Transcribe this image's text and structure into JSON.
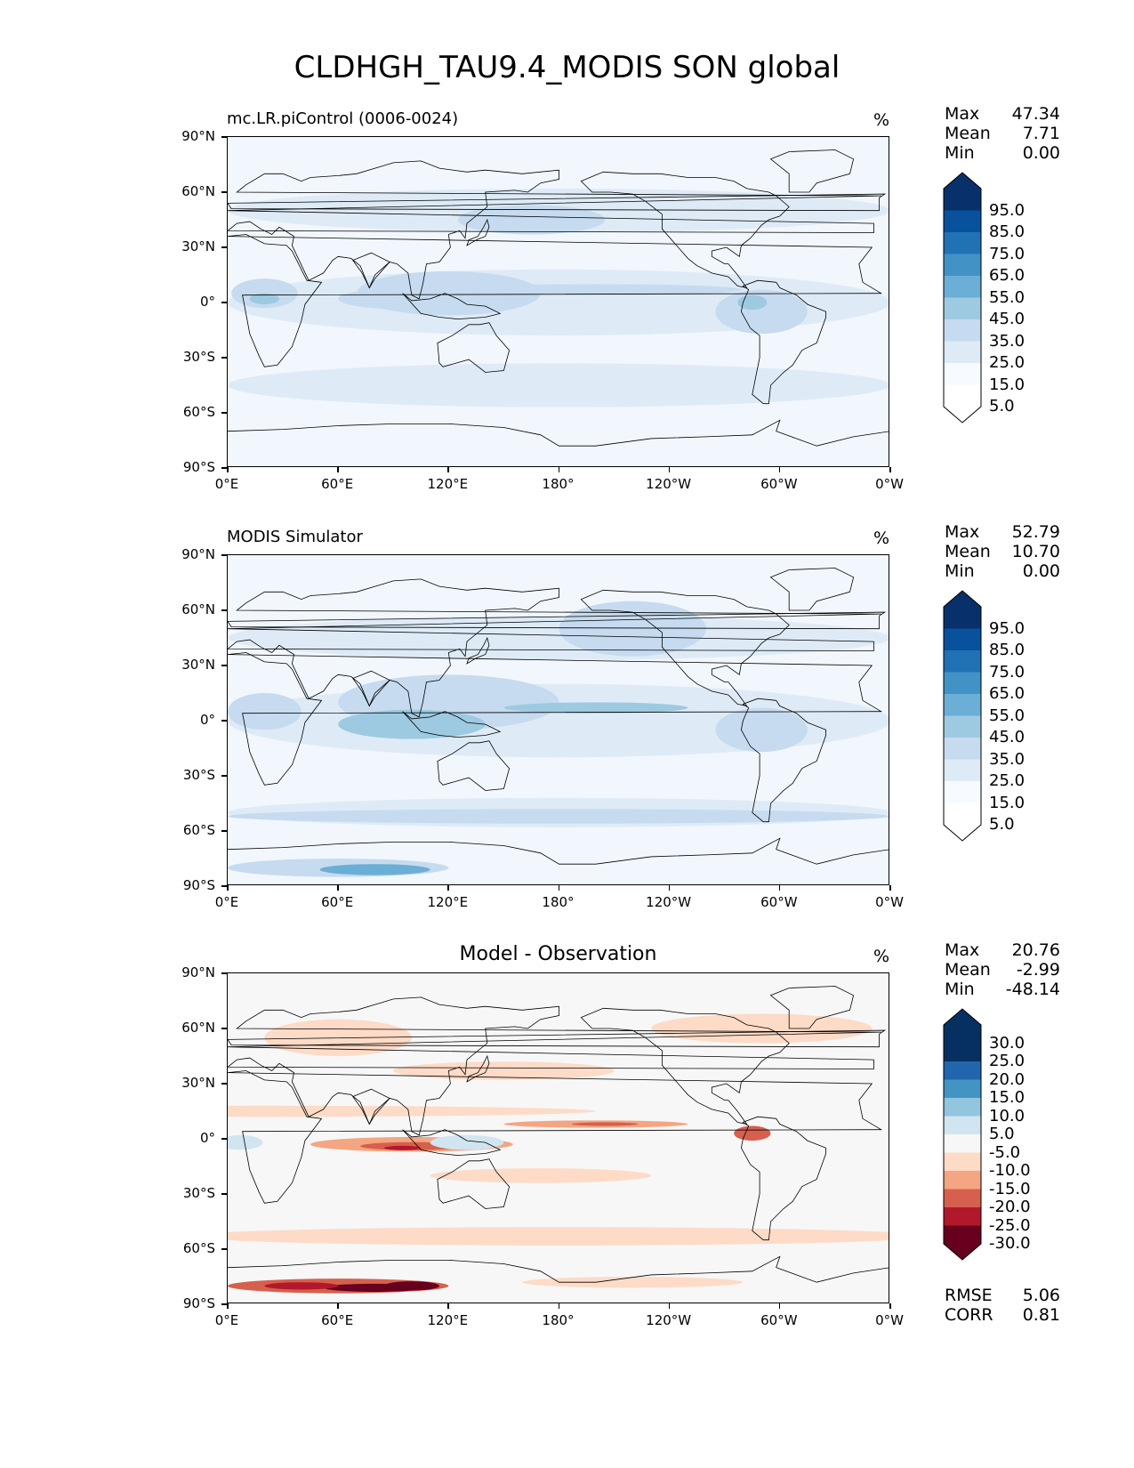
{
  "title": "CLDHGH_TAU9.4_MODIS SON global",
  "lat_ticks": [
    "90°N",
    "60°N",
    "30°N",
    "0°",
    "30°S",
    "60°S",
    "90°S"
  ],
  "lon_ticks": [
    "0°E",
    "60°E",
    "120°E",
    "180°",
    "120°W",
    "60°W",
    "0°W"
  ],
  "panels": [
    {
      "title": "mc.LR.piControl (0006-0024)",
      "units": "%",
      "stats": {
        "max_label": "Max",
        "max": "47.34",
        "mean_label": "Mean",
        "mean": "7.71",
        "min_label": "Min",
        "min": "0.00"
      },
      "colorbar_labels": [
        "95.0",
        "85.0",
        "75.0",
        "65.0",
        "55.0",
        "45.0",
        "35.0",
        "25.0",
        "15.0",
        "5.0"
      ]
    },
    {
      "title": "MODIS Simulator",
      "units": "%",
      "stats": {
        "max_label": "Max",
        "max": "52.79",
        "mean_label": "Mean",
        "mean": "10.70",
        "min_label": "Min",
        "min": "0.00"
      },
      "colorbar_labels": [
        "95.0",
        "85.0",
        "75.0",
        "65.0",
        "55.0",
        "45.0",
        "35.0",
        "25.0",
        "15.0",
        "5.0"
      ]
    },
    {
      "title": "Model - Observation",
      "units": "%",
      "stats": {
        "max_label": "Max",
        "max": "20.76",
        "mean_label": "Mean",
        "mean": "-2.99",
        "min_label": "Min",
        "min": "-48.14"
      },
      "colorbar_labels": [
        "30.0",
        "25.0",
        "20.0",
        "15.0",
        "10.0",
        "5.0",
        "-5.0",
        "-10.0",
        "-15.0",
        "-20.0",
        "-25.0",
        "-30.0"
      ],
      "rmse_label": "RMSE",
      "rmse": "5.06",
      "corr_label": "CORR",
      "corr": "0.81"
    }
  ],
  "colors": {
    "blues": [
      "#ffffff",
      "#f7fbff",
      "#deebf7",
      "#c6dbef",
      "#9ecae1",
      "#6baed6",
      "#4292c6",
      "#2171b5",
      "#08519c",
      "#08306b"
    ],
    "diff": [
      "#67001f",
      "#b2182b",
      "#d6604d",
      "#f4a582",
      "#fddbc7",
      "#f7f7f7",
      "#d1e5f0",
      "#92c5de",
      "#4393c3",
      "#2166ac",
      "#053061"
    ]
  }
}
